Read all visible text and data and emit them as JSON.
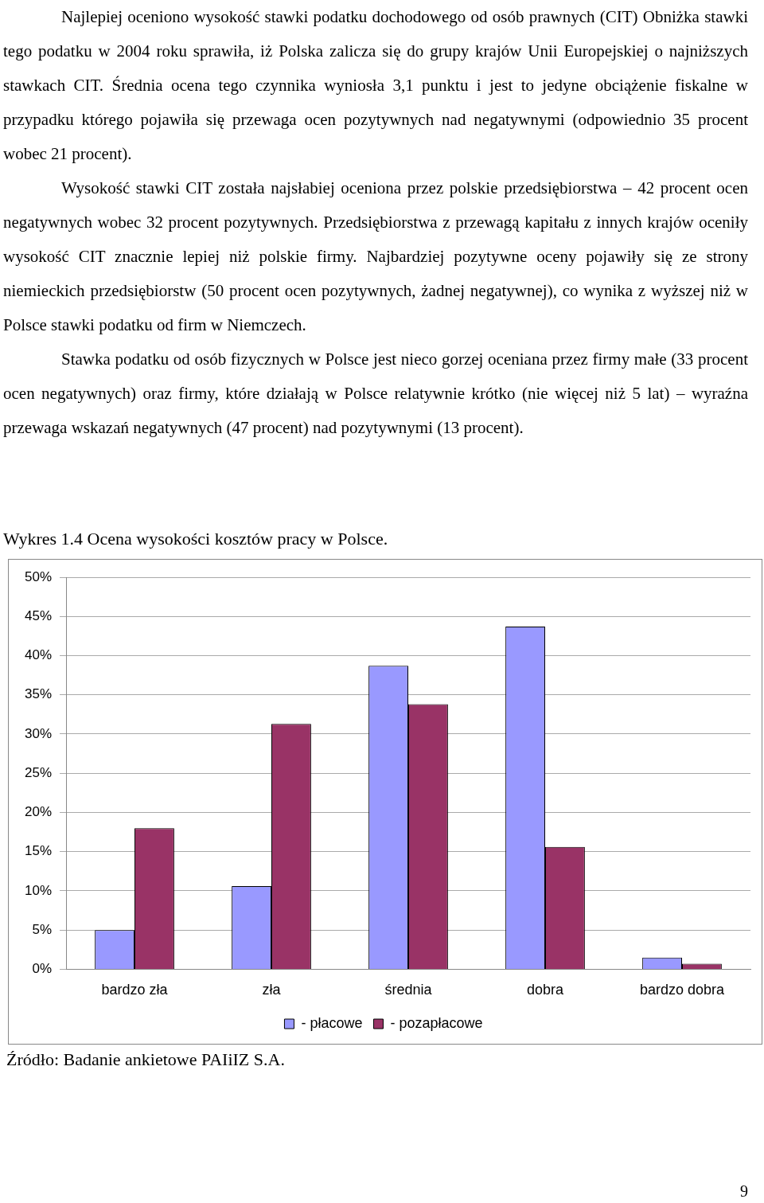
{
  "chart_data": {
    "type": "bar",
    "title": "Wykres 1.4 Ocena wysokości kosztów pracy w Polsce.",
    "categories": [
      "bardzo zła",
      "zła",
      "średnia",
      "dobra",
      "bardzo dobra"
    ],
    "series": [
      {
        "name": "- płacowe",
        "color": "#9999ff",
        "values": [
          5,
          10.6,
          38.7,
          43.7,
          1.5
        ]
      },
      {
        "name": "- pozapłacowe",
        "color": "#993366",
        "values": [
          18,
          31.3,
          33.8,
          15.6,
          0.7
        ]
      }
    ],
    "ylim": [
      0,
      50
    ],
    "yticks": [
      {
        "value": 0,
        "label": "0%"
      },
      {
        "value": 5,
        "label": "5%"
      },
      {
        "value": 10,
        "label": "10%"
      },
      {
        "value": 15,
        "label": "15%"
      },
      {
        "value": 20,
        "label": "20%"
      },
      {
        "value": 25,
        "label": "25%"
      },
      {
        "value": 30,
        "label": "30%"
      },
      {
        "value": 35,
        "label": "35%"
      },
      {
        "value": 40,
        "label": "40%"
      },
      {
        "value": 45,
        "label": "45%"
      },
      {
        "value": 50,
        "label": "50%"
      }
    ],
    "grid": "y",
    "legend": "bottom",
    "annotations": [
      "Najlepiej oceniono wysokość stawki podatku dochodowego od osób prawnych (CIT) Obniżka stawki tego podatku w 2004 roku sprawiła, iż Polska zalicza się do grupy krajów Unii Europejskiej o najniższych stawkach CIT. Średnia ocena tego czynnika wyniosła 3,1 punktu i jest to jedyne obciążenie fiskalne w przypadku którego pojawiła się przewaga ocen pozytywnych nad negatywnymi (odpowiednio 35 procent wobec 21 procent).",
      "Wysokość stawki CIT została najsłabiej oceniona przez polskie przedsiębiorstwa – 42 procent ocen negatywnych wobec 32 procent pozytywnych. Przedsiębiorstwa z przewagą kapitału z innych krajów oceniły wysokość CIT znacznie lepiej niż polskie firmy. Najbardziej pozytywne oceny pojawiły się ze strony niemieckich przedsiębiorstw (50 procent ocen pozytywnych, żadnej negatywnej), co wynika z wyższej niż w Polsce stawki podatku od firm w Niemczech.",
      "Stawka podatku od osób fizycznych w Polsce jest nieco gorzej oceniana przez firmy małe (33 procent ocen negatywnych) oraz firmy, które działają w Polsce relatywnie krótko (nie więcej niż 5 lat) – wyraźna przewaga wskazań negatywnych (47 procent) nad pozytywnymi (13 procent).",
      "Źródło: Badanie ankietowe PAIiIZ S.A.",
      "9"
    ]
  }
}
